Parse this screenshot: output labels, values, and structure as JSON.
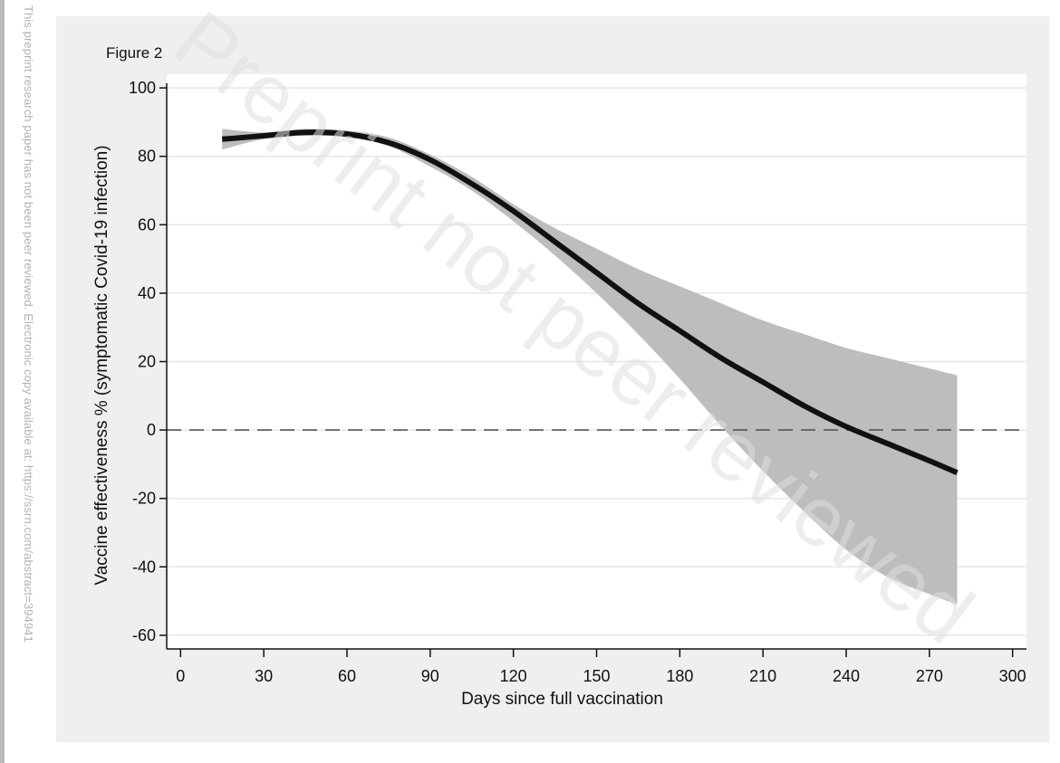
{
  "side_note": "This preprint research paper has not been peer reviewed. Electronic copy available at: https://ssrn.com/abstract=394941",
  "watermark": "Preprint not peer reviewed",
  "colors": {
    "panel_bg": "#efefef",
    "plot_bg": "#ffffff",
    "grid": "#e6e6e6",
    "ci_band": "#bdbdbd",
    "line": "#111111"
  },
  "chart_data": {
    "type": "line",
    "figure_label": "Figure 2",
    "xlabel": "Days since full vaccination",
    "ylabel": "Vaccine effectiveness % (symptomatic Covid-19 infection)",
    "xlim": [
      -5,
      305
    ],
    "ylim": [
      -64,
      104
    ],
    "x_ticks": [
      0,
      30,
      60,
      90,
      120,
      150,
      180,
      210,
      240,
      270,
      300
    ],
    "y_ticks": [
      -60,
      -40,
      -20,
      0,
      20,
      40,
      60,
      80,
      100
    ],
    "grid": true,
    "reference_line": {
      "y": 0,
      "style": "dashed"
    },
    "series": [
      {
        "role": "estimate",
        "x": [
          15,
          30,
          45,
          60,
          75,
          90,
          105,
          120,
          135,
          150,
          165,
          180,
          195,
          210,
          225,
          240,
          255,
          270,
          280
        ],
        "y": [
          85,
          86,
          87,
          86.5,
          84,
          79,
          72,
          64,
          55,
          46,
          37,
          29,
          21,
          14,
          7,
          1,
          -4,
          -9,
          -12.5
        ]
      },
      {
        "role": "ci_upper",
        "x": [
          15,
          30,
          45,
          60,
          75,
          90,
          105,
          120,
          135,
          150,
          165,
          180,
          195,
          210,
          225,
          240,
          255,
          270,
          280
        ],
        "y": [
          88,
          87,
          88,
          87.5,
          85.5,
          80.5,
          74,
          66,
          59,
          53,
          47,
          42,
          37,
          32,
          28,
          24,
          21,
          18,
          16
        ]
      },
      {
        "role": "ci_lower",
        "x": [
          15,
          30,
          45,
          60,
          75,
          90,
          105,
          120,
          135,
          150,
          165,
          180,
          195,
          210,
          225,
          240,
          255,
          270,
          280
        ],
        "y": [
          82,
          85,
          86,
          85.5,
          83,
          77,
          70,
          61,
          51,
          40,
          28,
          15,
          1,
          -12,
          -24,
          -35,
          -43,
          -48,
          -51
        ]
      }
    ]
  }
}
